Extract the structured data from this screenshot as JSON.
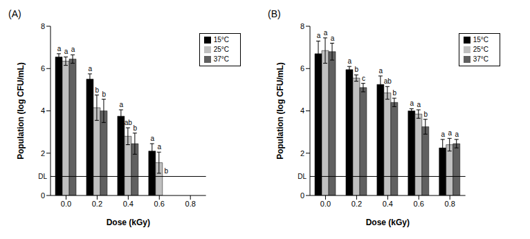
{
  "chart_data": [
    {
      "type": "bar",
      "title": "(A)",
      "x_label": "Dose (kGy)",
      "y_label": "Population (log CFU/mL)",
      "categories": [
        "0.0",
        "0.2",
        "0.4",
        "0.6",
        "0.8"
      ],
      "series": [
        {
          "name": "15°C",
          "color": "#000000",
          "values": [
            6.55,
            5.5,
            3.75,
            2.1,
            null
          ],
          "errors": [
            0.15,
            0.25,
            0.3,
            0.35,
            null
          ],
          "letters": [
            "a",
            "a",
            "a",
            "a",
            null
          ]
        },
        {
          "name": "25°C",
          "color": "#c0c0c0",
          "values": [
            6.35,
            4.15,
            2.8,
            1.55,
            null
          ],
          "errors": [
            0.2,
            0.6,
            0.4,
            0.5,
            null
          ],
          "letters": [
            "a",
            "b",
            "ab",
            "a",
            null
          ]
        },
        {
          "name": "37°C",
          "color": "#606060",
          "values": [
            6.45,
            4.0,
            2.45,
            null,
            null
          ],
          "errors": [
            0.2,
            0.55,
            0.5,
            null,
            null
          ],
          "letters": [
            "a",
            "b",
            "b",
            "b",
            null
          ]
        }
      ],
      "ylim": [
        0,
        8
      ],
      "yticks": [
        0,
        2,
        4,
        6,
        8
      ],
      "reference_line": {
        "label": "DL",
        "value": 0.9
      },
      "legend": "upper right",
      "grid": false
    },
    {
      "type": "bar",
      "title": "(B)",
      "x_label": "Dose (kGy)",
      "y_label": "Population (log CFU/mL)",
      "categories": [
        "0.0",
        "0.2",
        "0.4",
        "0.6",
        "0.8"
      ],
      "series": [
        {
          "name": "15°C",
          "color": "#000000",
          "values": [
            6.7,
            5.95,
            5.25,
            4.0,
            2.25
          ],
          "errors": [
            0.6,
            0.15,
            0.4,
            0.1,
            0.4
          ],
          "letters": [
            "a",
            "a",
            "a",
            "a",
            "a"
          ]
        },
        {
          "name": "25°C",
          "color": "#c0c0c0",
          "values": [
            6.85,
            5.55,
            4.85,
            3.85,
            2.4
          ],
          "errors": [
            0.6,
            0.15,
            0.3,
            0.2,
            0.3
          ],
          "letters": [
            "a",
            "b",
            "ab",
            "a",
            "a"
          ]
        },
        {
          "name": "37°C",
          "color": "#606060",
          "values": [
            6.8,
            5.1,
            4.4,
            3.25,
            2.45
          ],
          "errors": [
            0.4,
            0.2,
            0.2,
            0.35,
            0.2
          ],
          "letters": [
            "a",
            "c",
            "b",
            "b",
            "a"
          ]
        }
      ],
      "ylim": [
        0,
        8
      ],
      "yticks": [
        0,
        2,
        4,
        6,
        8
      ],
      "reference_line": {
        "label": "DL",
        "value": 0.9
      },
      "legend": "upper right",
      "grid": false
    }
  ]
}
